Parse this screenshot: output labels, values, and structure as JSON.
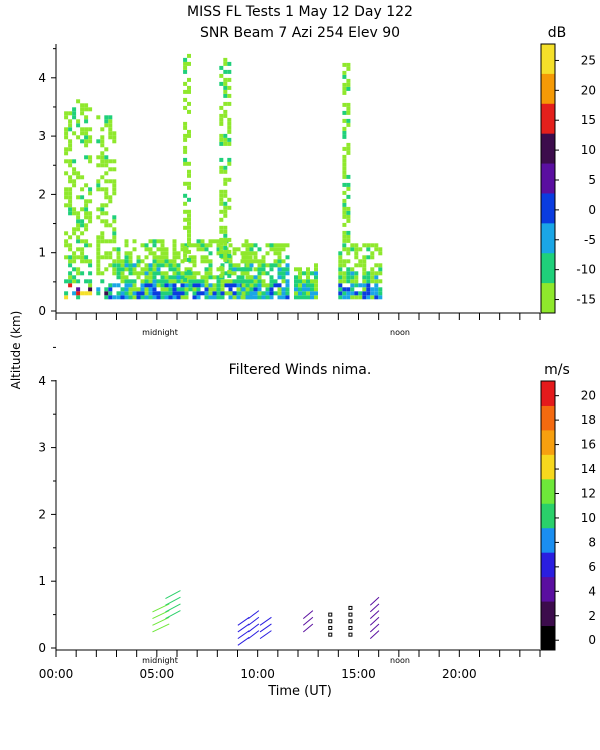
{
  "title_line1": "MISS FL Tests   1 May 12 Day 122",
  "title_line2": "SNR Beam 7 Azi 254 Elev 90",
  "ylabel": "Altitude (km)",
  "xlabel": "Time (UT)",
  "top_panel": {
    "unit": "dB",
    "y_ticks": [
      "0",
      "1",
      "2",
      "3",
      "4"
    ],
    "markers": [
      "midnight",
      "noon"
    ],
    "colorbar_labels": [
      "25",
      "20",
      "15",
      "10",
      "5",
      "0",
      "-5",
      "-10",
      "-15"
    ],
    "colorbar_colors": [
      "#f5e02a",
      "#f59a06",
      "#e4201c",
      "#3c0c4c",
      "#5a0fa0",
      "#0a3ce0",
      "#1aa6e6",
      "#1fd07a",
      "#8fe82c"
    ]
  },
  "bottom_panel": {
    "title": "Filtered Winds nima.",
    "unit": "m/s",
    "y_ticks": [
      "0",
      "1",
      "2",
      "3",
      "4"
    ],
    "x_ticks": [
      "00:00",
      "05:00",
      "10:00",
      "15:00",
      "20:00"
    ],
    "markers": [
      "midnight",
      "noon"
    ],
    "colorbar_labels": [
      "20",
      "18",
      "16",
      "14",
      "12",
      "10",
      "8",
      "6",
      "4",
      "2",
      "0"
    ],
    "colorbar_colors": [
      "#000000",
      "#3c0c4c",
      "#5a0fa0",
      "#2a1ee0",
      "#1a8ef0",
      "#2ad06a",
      "#6ee83a",
      "#f7d81e",
      "#f7a010",
      "#f46a10",
      "#e41a1c"
    ]
  },
  "chart_data": [
    {
      "type": "heatmap",
      "title": "SNR Beam 7 Azi 254 Elev 90",
      "ylabel": "Altitude (km)",
      "unit": "dB",
      "ylim": [
        0,
        4.6
      ],
      "xlim_hours": [
        0,
        24
      ],
      "color_range": [
        -15,
        30
      ],
      "echo_regions": [
        {
          "t_start": 0.4,
          "t_end": 1.7,
          "z_bottom": 0.2,
          "z_top": 3.6,
          "snr": "-15..25"
        },
        {
          "t_start": 2.0,
          "t_end": 2.8,
          "z_bottom": 0.2,
          "z_top": 3.3,
          "snr": "-15..10"
        },
        {
          "t_start": 3.0,
          "t_end": 9.6,
          "z_bottom": 0.2,
          "z_top": 1.2,
          "snr": "-15..0"
        },
        {
          "t_start": 6.3,
          "t_end": 6.6,
          "z_bottom": 0.5,
          "z_top": 4.5,
          "snr": "-15..-10"
        },
        {
          "t_start": 8.1,
          "t_end": 8.5,
          "z_bottom": 0.5,
          "z_top": 4.3,
          "snr": "-15..-10"
        },
        {
          "t_start": 9.2,
          "t_end": 11.5,
          "z_bottom": 0.2,
          "z_top": 1.1,
          "snr": "-15..0"
        },
        {
          "t_start": 11.8,
          "t_end": 12.9,
          "z_bottom": 0.2,
          "z_top": 0.8,
          "snr": "-15..-5"
        },
        {
          "t_start": 14.0,
          "t_end": 16.0,
          "z_bottom": 0.2,
          "z_top": 1.1,
          "snr": "-15..0"
        },
        {
          "t_start": 14.2,
          "t_end": 14.5,
          "z_bottom": 1.1,
          "z_top": 4.5,
          "snr": "-15..-10"
        }
      ]
    },
    {
      "type": "scatter",
      "title": "Filtered Winds nima.",
      "xlabel": "Time (UT)",
      "ylabel": "Altitude (km)",
      "unit": "m/s",
      "ylim": [
        0,
        4
      ],
      "xlim_hours": [
        0,
        24
      ],
      "color_range": [
        0,
        22
      ],
      "barb_groups": [
        {
          "t": 5.2,
          "altitudes": [
            0.3,
            0.4,
            0.5,
            0.6
          ],
          "speed": 12
        },
        {
          "t": 5.8,
          "altitudes": [
            0.5,
            0.6,
            0.7,
            0.8
          ],
          "speed": 10
        },
        {
          "t": 9.3,
          "altitudes": [
            0.1,
            0.2,
            0.3,
            0.4
          ],
          "speed": 6
        },
        {
          "t": 9.8,
          "altitudes": [
            0.2,
            0.3,
            0.4,
            0.5
          ],
          "speed": 5
        },
        {
          "t": 10.4,
          "altitudes": [
            0.2,
            0.3,
            0.4
          ],
          "speed": 6
        },
        {
          "t": 12.5,
          "altitudes": [
            0.3,
            0.4,
            0.5
          ],
          "speed": 4
        },
        {
          "t": 13.6,
          "altitudes": [
            0.2,
            0.3,
            0.4,
            0.5
          ],
          "speed": 0
        },
        {
          "t": 14.6,
          "altitudes": [
            0.2,
            0.3,
            0.4,
            0.5,
            0.6
          ],
          "speed": 0
        },
        {
          "t": 15.8,
          "altitudes": [
            0.2,
            0.3,
            0.4,
            0.5,
            0.6,
            0.7
          ],
          "speed": 3
        }
      ]
    }
  ]
}
